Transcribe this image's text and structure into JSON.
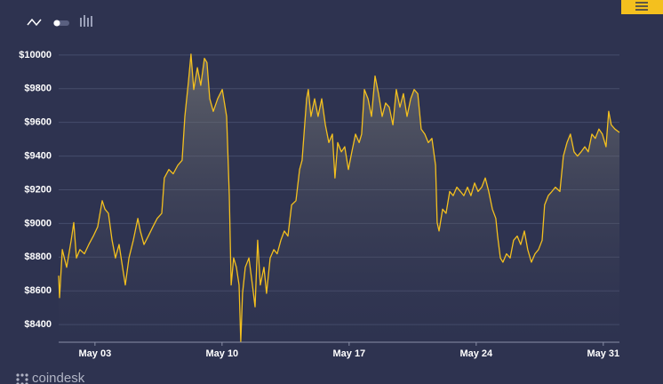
{
  "chart_data": {
    "type": "area",
    "color": "#f4c01e",
    "grid": true,
    "source": "coindesk",
    "x": [
      1.0,
      1.05,
      1.2,
      1.44,
      1.69,
      1.83,
      1.98,
      2.17,
      2.42,
      2.66,
      2.91,
      3.15,
      3.4,
      3.55,
      3.74,
      3.94,
      4.13,
      4.33,
      4.52,
      4.67,
      4.87,
      5.11,
      5.36,
      5.5,
      5.7,
      5.94,
      6.19,
      6.43,
      6.68,
      6.82,
      7.07,
      7.31,
      7.56,
      7.8,
      7.95,
      8.15,
      8.29,
      8.44,
      8.64,
      8.83,
      9.03,
      9.17,
      9.32,
      9.52,
      9.76,
      10.01,
      10.25,
      10.4,
      10.5,
      10.64,
      10.79,
      10.94,
      11.03,
      11.13,
      11.28,
      11.48,
      11.67,
      11.82,
      11.96,
      12.11,
      12.31,
      12.45,
      12.65,
      12.85,
      13.04,
      13.24,
      13.43,
      13.63,
      13.83,
      14.07,
      14.27,
      14.41,
      14.66,
      14.75,
      14.9,
      15.1,
      15.29,
      15.49,
      15.69,
      15.88,
      16.08,
      16.22,
      16.37,
      16.57,
      16.76,
      16.96,
      17.15,
      17.35,
      17.55,
      17.69,
      17.84,
      18.04,
      18.23,
      18.43,
      18.62,
      18.82,
      19.01,
      19.21,
      19.41,
      19.6,
      19.8,
      19.99,
      20.19,
      20.39,
      20.58,
      20.78,
      20.97,
      21.17,
      21.36,
      21.56,
      21.76,
      21.85,
      21.95,
      22.15,
      22.34,
      22.54,
      22.73,
      22.93,
      23.13,
      23.32,
      23.52,
      23.71,
      23.91,
      24.1,
      24.3,
      24.5,
      24.69,
      24.89,
      25.08,
      25.18,
      25.33,
      25.47,
      25.67,
      25.87,
      26.06,
      26.26,
      26.45,
      26.65,
      26.84,
      27.04,
      27.24,
      27.43,
      27.63,
      27.77,
      27.97,
      28.17,
      28.36,
      28.61,
      28.8,
      29.0,
      29.19,
      29.39,
      29.58,
      29.78,
      29.98,
      30.17,
      30.37,
      30.56,
      30.76,
      30.95,
      31.15,
      31.3,
      31.44,
      31.64,
      31.89
    ],
    "values": [
      8690,
      8560,
      8845,
      8740,
      8900,
      9005,
      8795,
      8845,
      8820,
      8875,
      8925,
      8980,
      9135,
      9085,
      9060,
      8900,
      8795,
      8875,
      8740,
      8635,
      8795,
      8900,
      9030,
      8955,
      8875,
      8925,
      8980,
      9030,
      9060,
      9270,
      9320,
      9295,
      9345,
      9375,
      9635,
      9845,
      10005,
      9795,
      9925,
      9820,
      9980,
      9955,
      9740,
      9665,
      9740,
      9795,
      9635,
      9165,
      8635,
      8795,
      8740,
      8635,
      8300,
      8585,
      8740,
      8795,
      8635,
      8505,
      8900,
      8635,
      8740,
      8585,
      8795,
      8845,
      8820,
      8900,
      8955,
      8925,
      9110,
      9135,
      9320,
      9375,
      9740,
      9795,
      9635,
      9740,
      9635,
      9740,
      9585,
      9480,
      9530,
      9270,
      9480,
      9425,
      9455,
      9320,
      9425,
      9530,
      9480,
      9530,
      9795,
      9740,
      9635,
      9875,
      9770,
      9635,
      9715,
      9690,
      9585,
      9795,
      9690,
      9770,
      9635,
      9740,
      9795,
      9770,
      9560,
      9530,
      9480,
      9505,
      9345,
      9005,
      8955,
      9085,
      9060,
      9190,
      9165,
      9215,
      9190,
      9165,
      9215,
      9165,
      9240,
      9190,
      9215,
      9270,
      9190,
      9085,
      9030,
      8925,
      8795,
      8770,
      8820,
      8795,
      8900,
      8925,
      8875,
      8955,
      8845,
      8770,
      8820,
      8845,
      8900,
      9110,
      9165,
      9190,
      9215,
      9190,
      9400,
      9480,
      9530,
      9425,
      9400,
      9425,
      9455,
      9425,
      9530,
      9505,
      9560,
      9530,
      9455,
      9665,
      9585,
      9560,
      9540
    ],
    "xlim": [
      1,
      31.89
    ],
    "ylim": [
      8295,
      10110
    ],
    "xticks": [
      {
        "value": 3,
        "label": "May 03"
      },
      {
        "value": 10,
        "label": "May 10"
      },
      {
        "value": 17,
        "label": "May 17"
      },
      {
        "value": 24,
        "label": "May 24"
      },
      {
        "value": 31,
        "label": "May 31"
      }
    ],
    "yticks": [
      {
        "value": 8400,
        "label": "$8400"
      },
      {
        "value": 8600,
        "label": "$8600"
      },
      {
        "value": 8800,
        "label": "$8800"
      },
      {
        "value": 9000,
        "label": "$9000"
      },
      {
        "value": 9200,
        "label": "$9200"
      },
      {
        "value": 9400,
        "label": "$9400"
      },
      {
        "value": 9600,
        "label": "$9600"
      },
      {
        "value": 9800,
        "label": "$9800"
      },
      {
        "value": 10000,
        "label": "$10000"
      }
    ]
  }
}
